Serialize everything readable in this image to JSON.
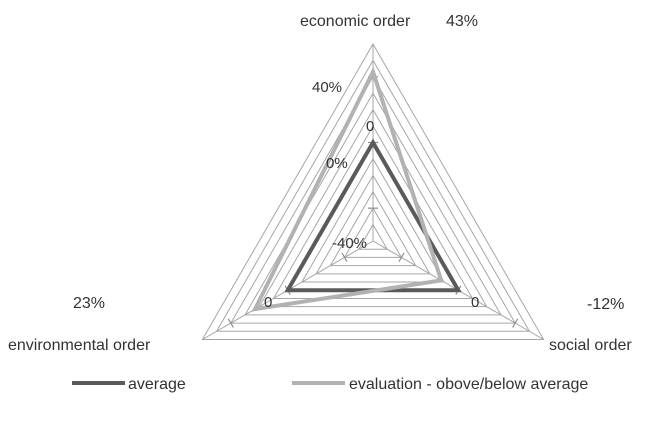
{
  "chart_data": {
    "type": "radar",
    "title": "",
    "axes": [
      {
        "label": "economic order",
        "value_label": "43%"
      },
      {
        "label": "social order",
        "value_label": "-12%"
      },
      {
        "label": "environmental order",
        "value_label": "23%"
      }
    ],
    "range": [
      -60,
      60
    ],
    "ring_step": 10,
    "tick_labels": [
      "40%",
      "0%",
      "-40%"
    ],
    "tick_values": [
      40,
      0,
      -40
    ],
    "inner_markers": [
      "0",
      "0",
      "0"
    ],
    "series": [
      {
        "name": "average",
        "values": [
          0,
          0,
          0
        ],
        "color": "#5a5a5a"
      },
      {
        "name": "evaluation - obove/below average",
        "values": [
          43,
          -12,
          23
        ],
        "color": "#b2b2b2"
      }
    ],
    "legend": "bottom",
    "grid": true,
    "grid_color": "#a6a6a6"
  }
}
